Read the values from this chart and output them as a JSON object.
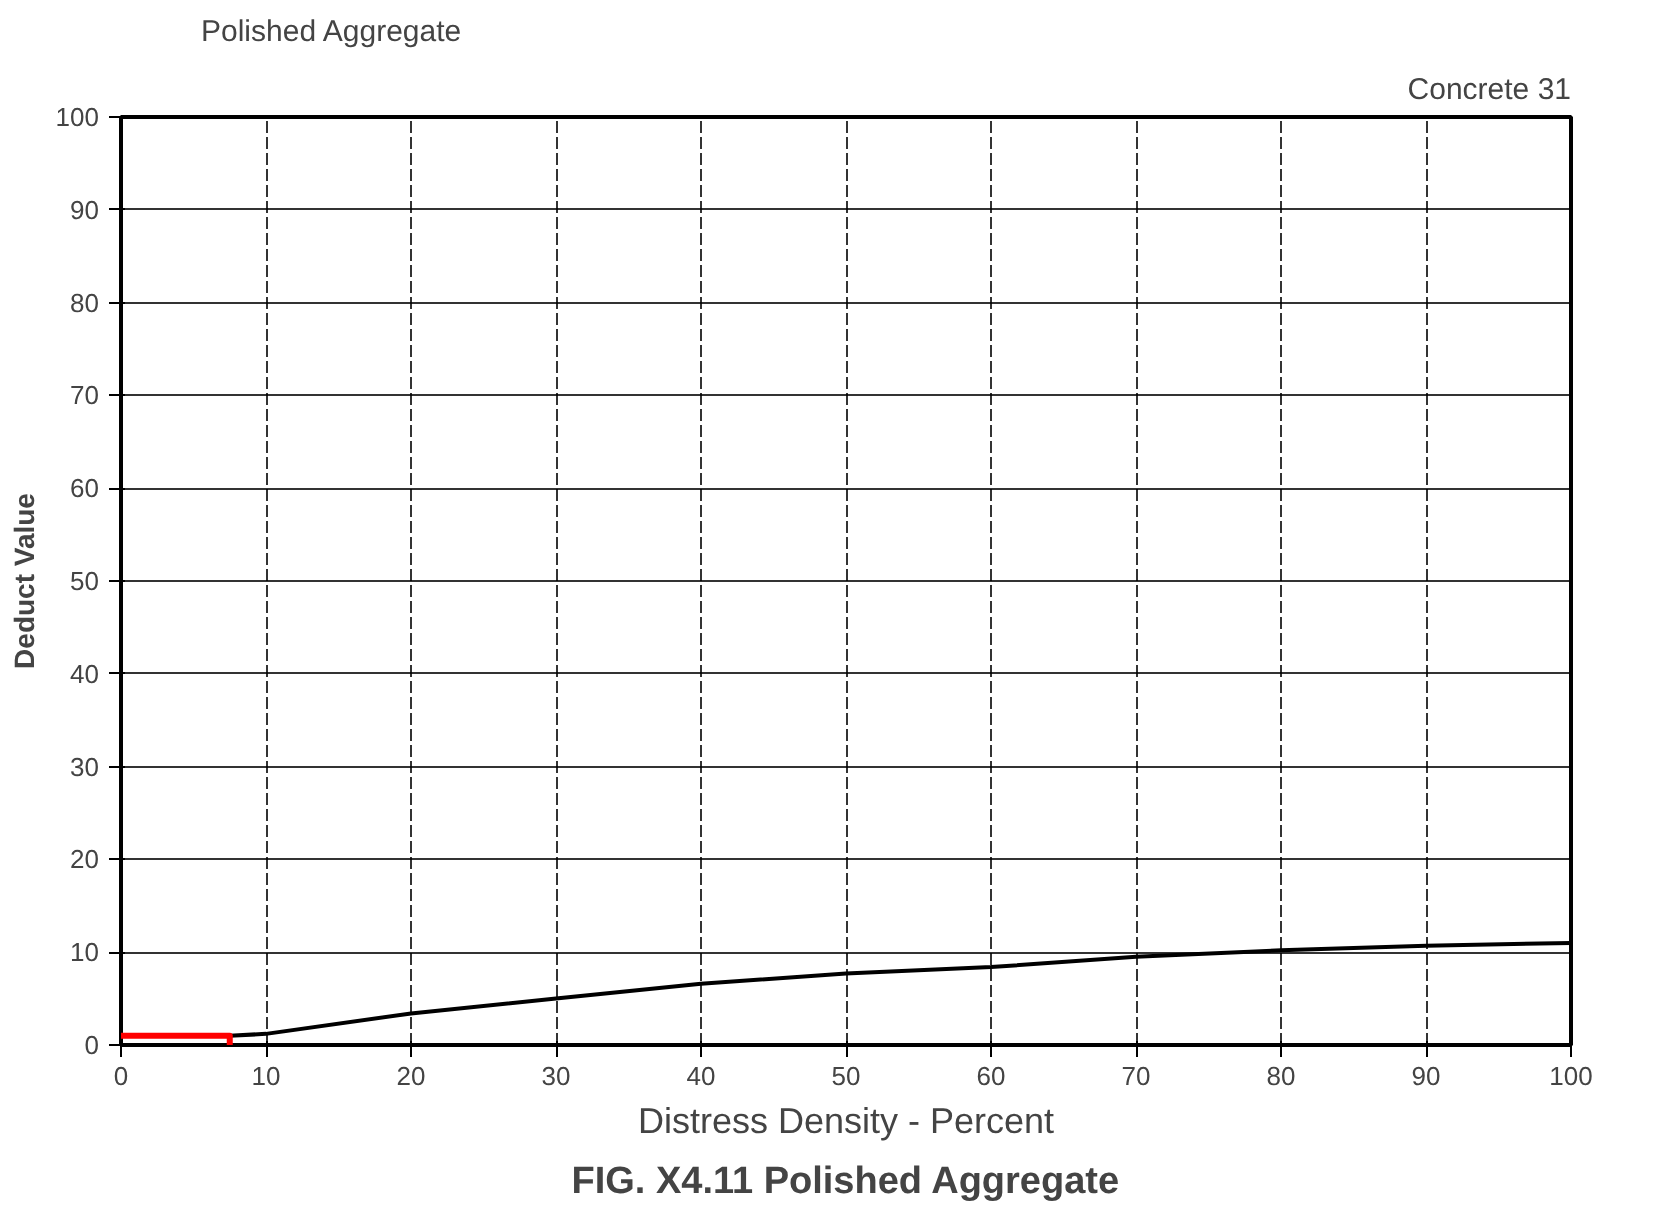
{
  "chart_data": {
    "type": "line",
    "title": "Polished Aggregate",
    "subtitle": "Concrete 31",
    "xlabel": "Distress Density - Percent",
    "ylabel": "Deduct Value",
    "annotations": [
      "FIG. X4.11 Polished Aggregate"
    ],
    "series": [
      {
        "color": "#000000",
        "x": [
          7.5,
          10,
          20,
          30,
          40,
          50,
          60,
          70,
          80,
          90,
          100
        ],
        "values": [
          1,
          1.2,
          3.4,
          5,
          6.6,
          7.7,
          8.4,
          9.5,
          10.2,
          10.7,
          11
        ]
      },
      {
        "color": "#ff0000",
        "x": [
          0,
          7.5,
          7.5
        ],
        "values": [
          1,
          1,
          0
        ]
      }
    ],
    "xlim": [
      0,
      100
    ],
    "ylim": [
      0,
      100
    ],
    "xticks": [
      0,
      10,
      20,
      30,
      40,
      50,
      60,
      70,
      80,
      90,
      100
    ],
    "yticks": [
      0,
      10,
      20,
      30,
      40,
      50,
      60,
      70,
      80,
      90,
      100
    ],
    "grid": true,
    "marker": "none",
    "line_style": "solid"
  }
}
